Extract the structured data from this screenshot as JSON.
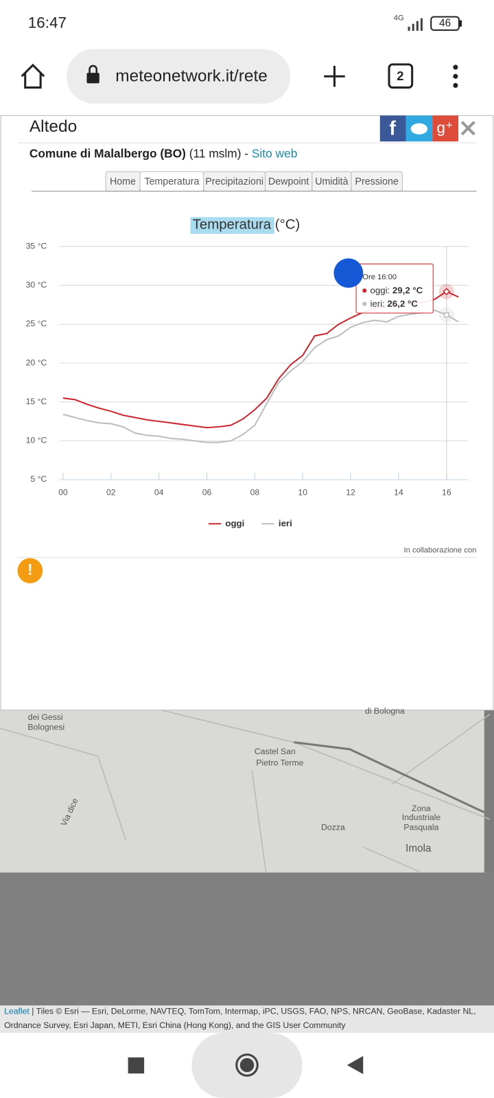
{
  "status_bar": {
    "time": "16:47",
    "network": "4G",
    "battery": "46"
  },
  "browser": {
    "url": "meteonetwork.it/rete",
    "tab_count": "2"
  },
  "station": {
    "name": "Altedo",
    "comune": "Comune di Malalbergo (BO)",
    "altitude": "(11 mslm) -",
    "link": "Sito web"
  },
  "tabs": [
    "Home",
    "Temperatura",
    "Precipitazioni",
    "Dewpoint",
    "Umidità",
    "Pressione"
  ],
  "chart_data": {
    "type": "line",
    "title": "Temperatura",
    "title_unit": "(°C)",
    "x": [
      0,
      0.5,
      1,
      1.5,
      2,
      2.5,
      3,
      3.5,
      4,
      4.5,
      5,
      5.5,
      6,
      6.5,
      7,
      7.5,
      8,
      8.5,
      9,
      9.5,
      10,
      10.5,
      11,
      11.5,
      12,
      12.5,
      13,
      13.5,
      14,
      14.5,
      15,
      15.5,
      16,
      16.5
    ],
    "series": [
      {
        "name": "oggi",
        "color": "#c8282e",
        "values": [
          15.5,
          15.3,
          14.7,
          14.2,
          13.8,
          13.3,
          13.0,
          12.7,
          12.5,
          12.3,
          12.1,
          11.9,
          11.7,
          11.8,
          12.0,
          12.8,
          14.0,
          15.5,
          18.0,
          19.8,
          21.0,
          23.5,
          23.8,
          25.0,
          25.8,
          26.5,
          27.0,
          27.3,
          27.5,
          27.7,
          27.8,
          28.2,
          29.2,
          28.5
        ]
      },
      {
        "name": "ieri",
        "color": "#bdbdbd",
        "values": [
          13.4,
          13.0,
          12.6,
          12.3,
          12.2,
          11.8,
          11.0,
          10.7,
          10.6,
          10.3,
          10.2,
          10.0,
          9.8,
          9.8,
          10.0,
          10.8,
          12.0,
          14.8,
          17.5,
          19.0,
          20.2,
          22.0,
          23.0,
          23.5,
          24.6,
          25.2,
          25.5,
          25.3,
          26.0,
          26.3,
          26.5,
          26.8,
          26.2,
          25.3
        ]
      }
    ],
    "xlim": [
      -0.15,
      16.9
    ],
    "ylim": [
      5,
      35
    ],
    "xticks": [
      {
        "value": 0,
        "label": "00"
      },
      {
        "value": 2,
        "label": "02"
      },
      {
        "value": 4,
        "label": "04"
      },
      {
        "value": 6,
        "label": "06"
      },
      {
        "value": 8,
        "label": "08"
      },
      10,
      12,
      14,
      16
    ],
    "yticks": [
      {
        "value": 5,
        "label": "5 °C"
      },
      {
        "value": 10,
        "label": "10 °C"
      },
      {
        "value": 15,
        "label": "15 °C"
      },
      {
        "value": 20,
        "label": "20 °C"
      },
      {
        "value": 25,
        "label": "25 °C"
      },
      {
        "value": 30,
        "label": "30 °C"
      },
      {
        "value": 35,
        "label": "35 °C"
      }
    ],
    "grid": true,
    "tooltip": {
      "x": 16,
      "header": "Ore 16:00",
      "rows": [
        {
          "name": "oggi:",
          "value": "29,2 °C"
        },
        {
          "name": "ieri:",
          "value": "26,2 °C"
        }
      ]
    }
  },
  "credit": "In collaborazione con",
  "map_labels": [
    "di Bologna",
    "dei Gessi",
    "Bolognesi",
    "Castel San",
    "Pietro Terme",
    "Dozza",
    "Zona",
    "Industriale",
    "Pasquala",
    "Imola",
    "Via dice"
  ],
  "attribution": {
    "link": "Leaflet",
    "line1": "| Tiles © Esri — Esri, DeLorme, NAVTEQ, TomTom, Intermap, iPC, USGS, FAO, NPS, NRCAN, GeoBase, Kadaster NL,",
    "line2": "Ordnance Survey, Esri Japan, METI, Esri China (Hong Kong), and the GIS User Community"
  }
}
